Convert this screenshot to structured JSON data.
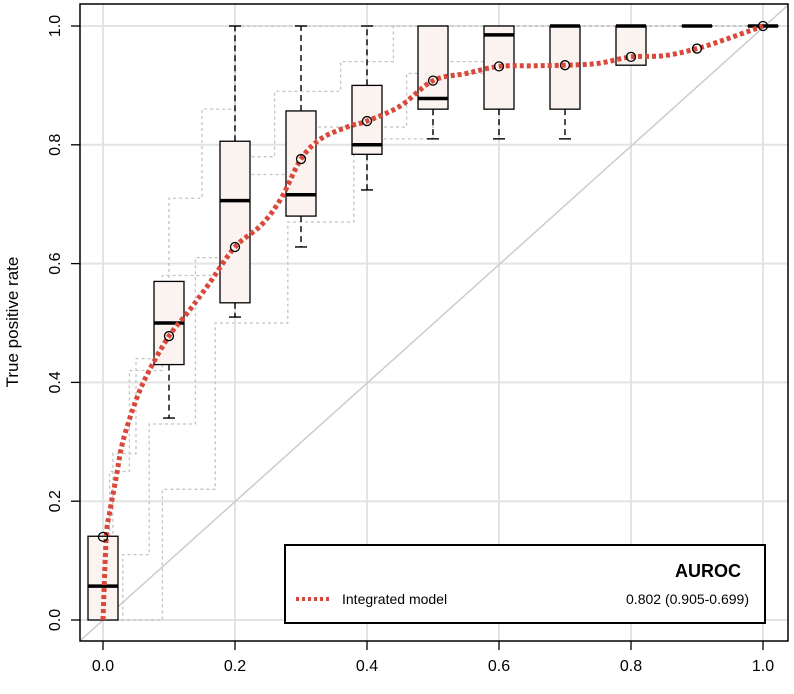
{
  "chart_data": {
    "type": "box",
    "xlabel": "",
    "ylabel": "True positive rate",
    "xlim": [
      0,
      1
    ],
    "ylim": [
      0,
      1
    ],
    "x_ticks": [
      "0.0",
      "0.2",
      "0.4",
      "0.6",
      "0.8",
      "1.0"
    ],
    "y_ticks": [
      "0.0",
      "0.2",
      "0.4",
      "0.6",
      "0.8",
      "1.0"
    ],
    "grid": true,
    "boxes": [
      {
        "x": 0.0,
        "q1": 0.0,
        "median": 0.057,
        "q3": 0.141,
        "whisker_low": 0.0,
        "whisker_high": 0.141,
        "mean": 0.14
      },
      {
        "x": 0.1,
        "q1": 0.43,
        "median": 0.5,
        "q3": 0.57,
        "whisker_low": 0.34,
        "whisker_high": 0.57,
        "mean": 0.478
      },
      {
        "x": 0.2,
        "q1": 0.534,
        "median": 0.706,
        "q3": 0.806,
        "whisker_low": 0.51,
        "whisker_high": 1.0,
        "mean": 0.628
      },
      {
        "x": 0.3,
        "q1": 0.68,
        "median": 0.716,
        "q3": 0.857,
        "whisker_low": 0.628,
        "whisker_high": 1.0,
        "mean": 0.776
      },
      {
        "x": 0.4,
        "q1": 0.784,
        "median": 0.8,
        "q3": 0.9,
        "whisker_low": 0.724,
        "whisker_high": 1.0,
        "mean": 0.84
      },
      {
        "x": 0.5,
        "q1": 0.86,
        "median": 0.878,
        "q3": 1.0,
        "whisker_low": 0.81,
        "whisker_high": 1.0,
        "mean": 0.908
      },
      {
        "x": 0.6,
        "q1": 0.86,
        "median": 0.985,
        "q3": 1.0,
        "whisker_low": 0.81,
        "whisker_high": 1.0,
        "mean": 0.932
      },
      {
        "x": 0.7,
        "q1": 0.86,
        "median": 1.0,
        "q3": 1.0,
        "whisker_low": 0.81,
        "whisker_high": 1.0,
        "mean": 0.934
      },
      {
        "x": 0.8,
        "q1": 0.934,
        "median": 1.0,
        "q3": 1.0,
        "whisker_low": 0.934,
        "whisker_high": 1.0,
        "mean": 0.948
      },
      {
        "x": 0.9,
        "q1": 1.0,
        "median": 1.0,
        "q3": 1.0,
        "whisker_low": 1.0,
        "whisker_high": 1.0,
        "mean": 0.962
      },
      {
        "x": 1.0,
        "q1": 1.0,
        "median": 1.0,
        "q3": 1.0,
        "whisker_low": 1.0,
        "whisker_high": 1.0,
        "mean": 1.0
      }
    ],
    "mean_curve": {
      "name": "Integrated model",
      "color": "#d9483b",
      "x": [
        0.0,
        0.005,
        0.01,
        0.02,
        0.03,
        0.05,
        0.07,
        0.1,
        0.13,
        0.16,
        0.2,
        0.24,
        0.27,
        0.3,
        0.33,
        0.37,
        0.4,
        0.45,
        0.5,
        0.55,
        0.6,
        0.65,
        0.7,
        0.75,
        0.8,
        0.85,
        0.9,
        0.95,
        1.0
      ],
      "y": [
        0.0,
        0.14,
        0.18,
        0.24,
        0.3,
        0.37,
        0.42,
        0.478,
        0.52,
        0.565,
        0.628,
        0.665,
        0.71,
        0.776,
        0.81,
        0.83,
        0.84,
        0.865,
        0.908,
        0.92,
        0.932,
        0.933,
        0.934,
        0.937,
        0.948,
        0.95,
        0.962,
        0.98,
        1.0
      ]
    },
    "reference_line": {
      "x": [
        0,
        1
      ],
      "y": [
        0,
        1
      ],
      "color": "#cccccc"
    },
    "individual_curves": [
      {
        "x": [
          0,
          0.015,
          0.015,
          0.05,
          0.05,
          0.1,
          0.1,
          0.15,
          0.15,
          0.2,
          0.2,
          0.4,
          0.4,
          1.0
        ],
        "y": [
          0,
          0,
          0.28,
          0.28,
          0.44,
          0.44,
          0.71,
          0.71,
          0.86,
          0.86,
          1.0,
          1.0,
          1.0,
          1.0
        ]
      },
      {
        "x": [
          0,
          0.03,
          0.03,
          0.07,
          0.07,
          0.14,
          0.14,
          0.2,
          0.2,
          0.26,
          0.26,
          0.36,
          0.36,
          0.44,
          0.44,
          0.52,
          0.52,
          1.0
        ],
        "y": [
          0,
          0,
          0.11,
          0.11,
          0.33,
          0.33,
          0.61,
          0.61,
          0.78,
          0.78,
          0.89,
          0.89,
          0.94,
          0.94,
          1.0,
          1.0,
          1.0,
          1.0
        ]
      },
      {
        "x": [
          0,
          0.05,
          0.05,
          0.09,
          0.09,
          0.17,
          0.17,
          0.28,
          0.28,
          0.38,
          0.38,
          0.5,
          0.5,
          0.62,
          0.62,
          1.0
        ],
        "y": [
          0,
          0,
          0.0,
          0.0,
          0.22,
          0.22,
          0.5,
          0.5,
          0.67,
          0.67,
          0.81,
          0.81,
          0.94,
          0.94,
          1.0,
          1.0
        ]
      },
      {
        "x": [
          0,
          0.01,
          0.01,
          0.04,
          0.04,
          0.09,
          0.09,
          0.18,
          0.18,
          0.3,
          0.3,
          0.46,
          0.46,
          0.6,
          0.6,
          1.0
        ],
        "y": [
          0,
          0,
          0.25,
          0.25,
          0.42,
          0.42,
          0.58,
          0.58,
          0.75,
          0.75,
          0.83,
          0.83,
          0.92,
          0.92,
          1.0,
          1.0
        ]
      }
    ],
    "legend": {
      "placement": "bottom-right",
      "title": "AUROC",
      "entries": [
        {
          "label": "Integrated model",
          "value": "0.802 (0.905-0.699)"
        }
      ]
    }
  }
}
